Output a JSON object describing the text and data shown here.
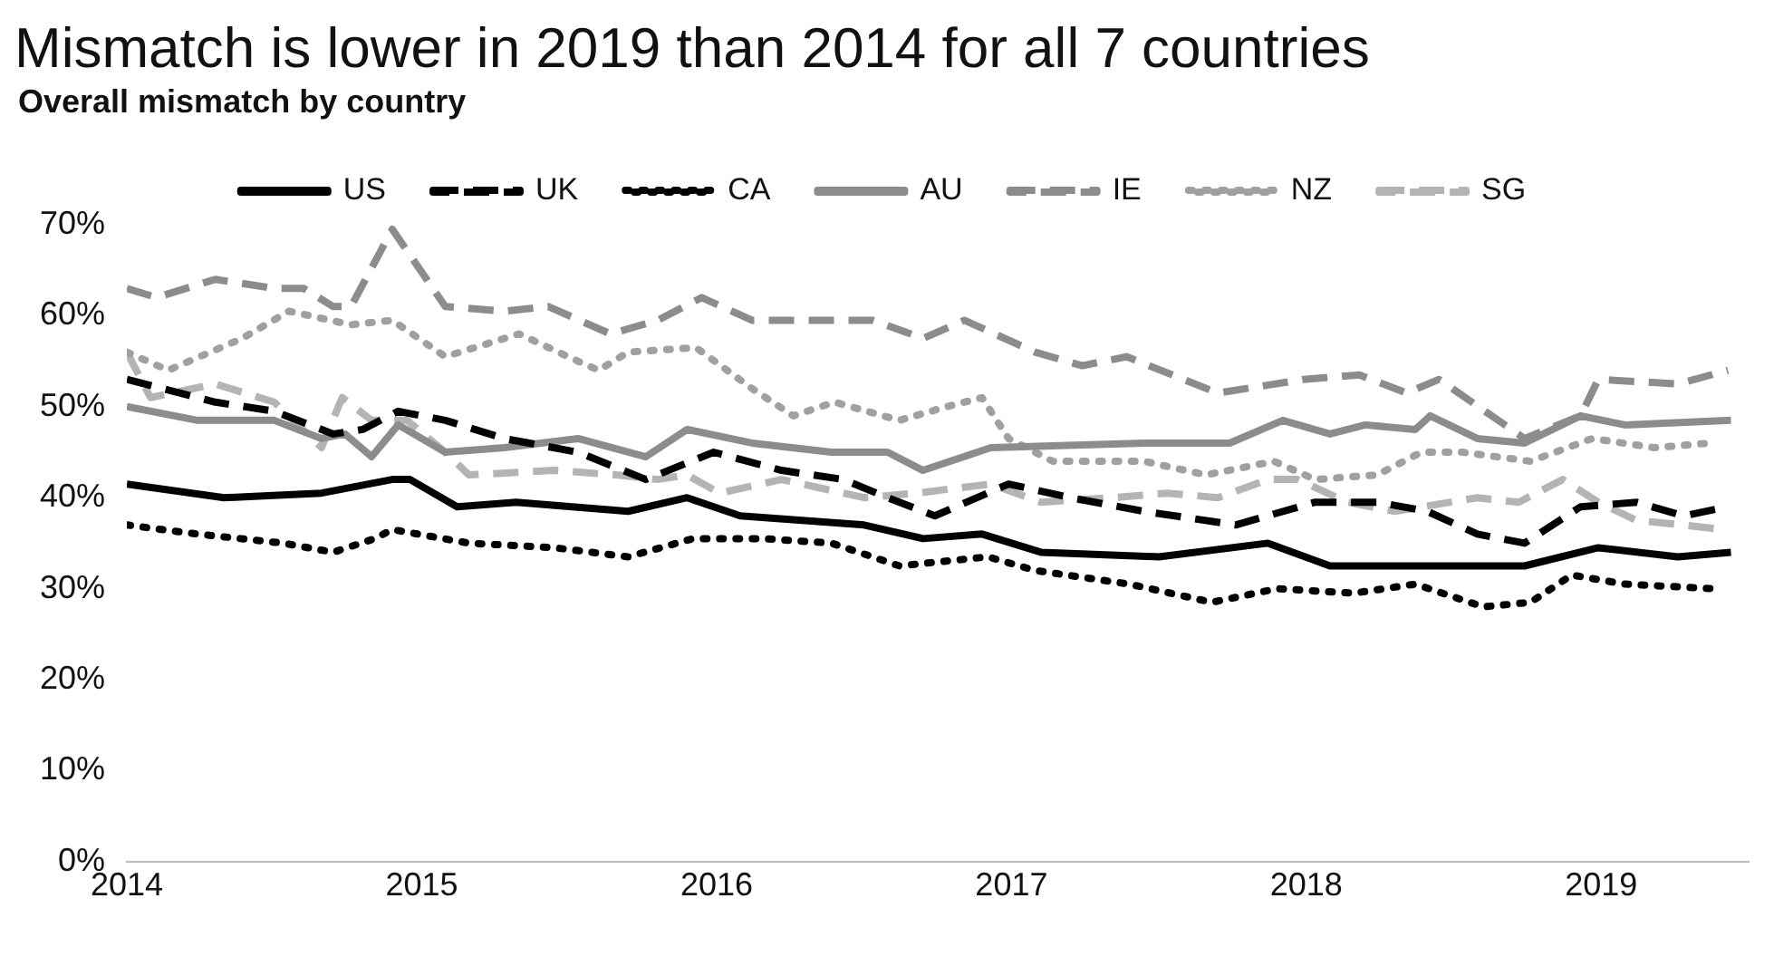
{
  "chart_data": {
    "type": "line",
    "title": "Mismatch is lower in 2019 than 2014 for all 7 countries",
    "subtitle": "Overall mismatch by country",
    "xlim": [
      2014,
      2019.5
    ],
    "xticks": [
      2014,
      2015,
      2016,
      2017,
      2018,
      2019
    ],
    "ylim": [
      0,
      70
    ],
    "yticks": [
      {
        "value": 0,
        "label": "0%"
      },
      {
        "value": 10,
        "label": "10%"
      },
      {
        "value": 20,
        "label": "20%"
      },
      {
        "value": 30,
        "label": "30%"
      },
      {
        "value": 40,
        "label": "40%"
      },
      {
        "value": 50,
        "label": "50%"
      },
      {
        "value": 60,
        "label": "60%"
      },
      {
        "value": 70,
        "label": "70%"
      }
    ],
    "grid": false,
    "legend": "top",
    "marker": "none",
    "series": [
      {
        "name": "US",
        "color": "#000000",
        "line_style": "solid",
        "x": [
          2014,
          2014.33,
          2014.66,
          2014.9,
          2014.96,
          2015.12,
          2015.32,
          2015.7,
          2015.9,
          2016.08,
          2016.5,
          2016.7,
          2016.9,
          2017.1,
          2017.5,
          2017.87,
          2018.08,
          2018.34,
          2018.74,
          2018.99,
          2019.26,
          2019.44
        ],
        "values": [
          41.5,
          40,
          40.5,
          42,
          42,
          39,
          39.5,
          38.5,
          40,
          38,
          37,
          35.5,
          36,
          34,
          33.5,
          35,
          32.5,
          32.5,
          32.5,
          34.5,
          33.5,
          34
        ]
      },
      {
        "name": "UK",
        "color": "#000000",
        "line_style": "dashed",
        "x": [
          2014,
          2014.3,
          2014.5,
          2014.7,
          2014.8,
          2014.92,
          2015.08,
          2015.28,
          2015.53,
          2015.76,
          2015.99,
          2016.22,
          2016.43,
          2016.58,
          2016.74,
          2016.99,
          2017.2,
          2017.45,
          2017.76,
          2018.03,
          2018.24,
          2018.41,
          2018.58,
          2018.74,
          2018.93,
          2019.12,
          2019.28,
          2019.43
        ],
        "values": [
          53,
          50.5,
          49.5,
          47,
          47.5,
          49.5,
          48.5,
          46.5,
          45,
          42,
          45,
          43,
          42,
          40,
          38,
          41.5,
          40,
          38.5,
          37,
          39.5,
          39.5,
          38.5,
          36,
          35,
          39,
          39.5,
          38,
          39
        ]
      },
      {
        "name": "CA",
        "color": "#000000",
        "line_style": "dotted",
        "x": [
          2014,
          2014.24,
          2014.53,
          2014.7,
          2014.84,
          2014.9,
          2015.16,
          2015.45,
          2015.7,
          2015.92,
          2016.16,
          2016.39,
          2016.62,
          2016.92,
          2017.08,
          2017.4,
          2017.68,
          2017.9,
          2018.16,
          2018.37,
          2018.6,
          2018.76,
          2018.9,
          2019.08,
          2019.38
        ],
        "values": [
          37,
          36,
          35,
          34,
          35.5,
          36.5,
          35,
          34.5,
          33.5,
          35.5,
          35.5,
          35,
          32.5,
          33.5,
          32,
          30.5,
          28.5,
          30,
          29.5,
          30.5,
          28,
          28.5,
          31.5,
          30.5,
          30
        ]
      },
      {
        "name": "AU",
        "color": "#8c8c8c",
        "line_style": "solid",
        "x": [
          2014,
          2014.24,
          2014.5,
          2014.66,
          2014.74,
          2014.83,
          2014.92,
          2015.08,
          2015.28,
          2015.53,
          2015.76,
          2015.9,
          2016.12,
          2016.39,
          2016.58,
          2016.7,
          2016.93,
          2017.45,
          2017.74,
          2017.92,
          2018.08,
          2018.2,
          2018.37,
          2018.42,
          2018.58,
          2018.74,
          2018.93,
          2019.08,
          2019.44
        ],
        "values": [
          50,
          48.5,
          48.5,
          46.5,
          47,
          44.5,
          48,
          45,
          45.5,
          46.5,
          44.5,
          47.5,
          46,
          45,
          45,
          43,
          45.5,
          46,
          46,
          48.5,
          47,
          48,
          47.5,
          49,
          46.5,
          46,
          49,
          48,
          48.5
        ]
      },
      {
        "name": "IE",
        "color": "#8c8c8c",
        "line_style": "dashed",
        "x": [
          2014,
          2014.1,
          2014.3,
          2014.5,
          2014.6,
          2014.7,
          2014.76,
          2014.9,
          2015.08,
          2015.28,
          2015.43,
          2015.64,
          2015.8,
          2015.95,
          2016.12,
          2016.53,
          2016.7,
          2016.84,
          2017.08,
          2017.24,
          2017.39,
          2017.7,
          2017.99,
          2018.18,
          2018.34,
          2018.45,
          2018.74,
          2018.93,
          2018.99,
          2019.26,
          2019.43
        ],
        "values": [
          63,
          62,
          64,
          63,
          63,
          61,
          61,
          69.5,
          61,
          60.5,
          61,
          58,
          59.5,
          62,
          59.5,
          59.5,
          57.5,
          59.5,
          56,
          54.5,
          55.5,
          51.5,
          53,
          53.5,
          51.5,
          53,
          46.5,
          49,
          53,
          52.5,
          54
        ]
      },
      {
        "name": "NZ",
        "color": "#a0a0a0",
        "line_style": "dotted",
        "x": [
          2014,
          2014.14,
          2014.39,
          2014.55,
          2014.76,
          2014.9,
          2015.08,
          2015.33,
          2015.53,
          2015.6,
          2015.7,
          2015.93,
          2016.12,
          2016.26,
          2016.4,
          2016.62,
          2016.78,
          2016.9,
          2016.99,
          2017.14,
          2017.45,
          2017.66,
          2017.89,
          2018.03,
          2018.24,
          2018.39,
          2018.53,
          2018.76,
          2018.97,
          2019.18,
          2019.37
        ],
        "values": [
          56,
          54,
          57.5,
          60.5,
          59,
          59.5,
          55.5,
          58,
          55,
          54,
          56,
          56.5,
          52,
          49,
          50.5,
          48.5,
          50,
          51,
          46.5,
          44,
          44,
          42.5,
          44,
          42,
          42.5,
          45,
          45,
          44,
          46.5,
          45.5,
          46
        ]
      },
      {
        "name": "SG",
        "color": "#b4b4b4",
        "line_style": "dashed",
        "x": [
          2014,
          2014.08,
          2014.3,
          2014.5,
          2014.66,
          2014.73,
          2014.83,
          2014.95,
          2015.08,
          2015.16,
          2015.45,
          2015.66,
          2015.8,
          2015.9,
          2016.01,
          2016.22,
          2016.5,
          2016.68,
          2016.8,
          2016.93,
          2017.1,
          2017.34,
          2017.53,
          2017.7,
          2017.87,
          2017.97,
          2018.14,
          2018.3,
          2018.58,
          2018.72,
          2018.87,
          2018.99,
          2019.12,
          2019.28,
          2019.41
        ],
        "values": [
          56,
          51,
          52.5,
          50.5,
          45.5,
          51,
          48.5,
          48.5,
          45,
          42.5,
          43,
          42.5,
          42,
          42.5,
          40.5,
          42,
          40,
          40.5,
          41,
          41.5,
          39.5,
          40,
          40.5,
          40,
          42,
          42,
          39.5,
          38.5,
          40,
          39.5,
          42,
          39.5,
          37.5,
          37,
          36.5
        ]
      }
    ]
  }
}
